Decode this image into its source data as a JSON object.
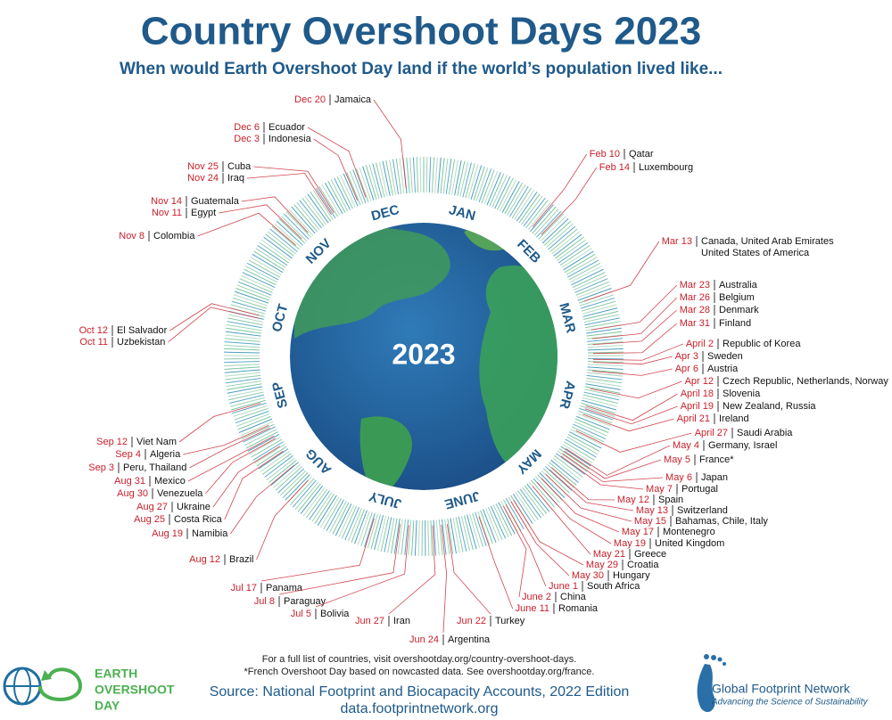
{
  "header": {
    "title": "Country Overshoot Days 2023",
    "subtitle": "When would Earth Overshoot Day land if the world’s population lived like..."
  },
  "center_label": "2023",
  "months": [
    "JAN",
    "FEB",
    "MAR",
    "APR",
    "MAY",
    "JUNE",
    "JULY",
    "AUG",
    "SEP",
    "OCT",
    "NOV",
    "DEC"
  ],
  "countries": [
    {
      "date": "Dec 20",
      "country": "Jamaica"
    },
    {
      "date": "Dec 6",
      "country": "Ecuador"
    },
    {
      "date": "Dec 3",
      "country": "Indonesia"
    },
    {
      "date": "Nov 25",
      "country": "Cuba"
    },
    {
      "date": "Nov 24",
      "country": "Iraq"
    },
    {
      "date": "Nov 14",
      "country": "Guatemala"
    },
    {
      "date": "Nov 11",
      "country": "Egypt"
    },
    {
      "date": "Nov 8",
      "country": "Colombia"
    },
    {
      "date": "Oct 12",
      "country": "El Salvador"
    },
    {
      "date": "Oct 11",
      "country": "Uzbekistan"
    },
    {
      "date": "Sep 12",
      "country": "Viet Nam"
    },
    {
      "date": "Sep 4",
      "country": "Algeria"
    },
    {
      "date": "Sep 3",
      "country": "Peru, Thailand"
    },
    {
      "date": "Aug 31",
      "country": "Mexico"
    },
    {
      "date": "Aug 30",
      "country": "Venezuela"
    },
    {
      "date": "Aug 27",
      "country": "Ukraine"
    },
    {
      "date": "Aug 25",
      "country": "Costa Rica"
    },
    {
      "date": "Aug 19",
      "country": "Namibia"
    },
    {
      "date": "Aug 12",
      "country": "Brazil"
    },
    {
      "date": "Jul 17",
      "country": "Panama"
    },
    {
      "date": "Jul 8",
      "country": "Paraguay"
    },
    {
      "date": "Jul 5",
      "country": "Bolivia"
    },
    {
      "date": "Jun 27",
      "country": "Iran"
    },
    {
      "date": "Jun 24",
      "country": "Argentina"
    },
    {
      "date": "Jun 22",
      "country": "Turkey"
    },
    {
      "date": "June 11",
      "country": "Romania"
    },
    {
      "date": "June 2",
      "country": "China"
    },
    {
      "date": "June 1",
      "country": "South Africa"
    },
    {
      "date": "May 30",
      "country": "Hungary"
    },
    {
      "date": "May 29",
      "country": "Croatia"
    },
    {
      "date": "May 21",
      "country": "Greece"
    },
    {
      "date": "May 19",
      "country": "United Kingdom"
    },
    {
      "date": "May 17",
      "country": "Montenegro"
    },
    {
      "date": "May 15",
      "country": "Bahamas, Chile, Italy"
    },
    {
      "date": "May 13",
      "country": "Switzerland"
    },
    {
      "date": "May 12",
      "country": "Spain"
    },
    {
      "date": "May 7",
      "country": "Portugal"
    },
    {
      "date": "May 6",
      "country": "Japan"
    },
    {
      "date": "May 5",
      "country": "France*"
    },
    {
      "date": "May 4",
      "country": "Germany, Israel"
    },
    {
      "date": "April 27",
      "country": "Saudi Arabia"
    },
    {
      "date": "April 21",
      "country": "Ireland"
    },
    {
      "date": "April 19",
      "country": "New Zealand, Russia"
    },
    {
      "date": "April 18",
      "country": "Slovenia"
    },
    {
      "date": "Apr 12",
      "country": "Czech Republic, Netherlands, Norway"
    },
    {
      "date": "Apr 6",
      "country": "Austria"
    },
    {
      "date": "Apr 3",
      "country": "Sweden"
    },
    {
      "date": "April 2",
      "country": "Republic of Korea"
    },
    {
      "date": "Mar 31",
      "country": "Finland"
    },
    {
      "date": "Mar 28",
      "country": "Denmark"
    },
    {
      "date": "Mar 26",
      "country": "Belgium"
    },
    {
      "date": "Mar 23",
      "country": "Australia"
    },
    {
      "date": "Mar 13",
      "country": "Canada, United Arab Emirates",
      "country_line2": "United States of America"
    },
    {
      "date": "Feb 14",
      "country": "Luxembourg"
    },
    {
      "date": "Feb 10",
      "country": "Qatar"
    }
  ],
  "footer": {
    "notes": [
      "For a full list of countries, visit overshootday.org/country-overshoot-days.",
      "*French Overshoot Day based on nowcasted data. See overshootday.org/france."
    ],
    "source": [
      "Source: National Footprint and Biocapacity Accounts, 2022 Edition",
      "data.footprintnetwork.org"
    ]
  },
  "logos": {
    "earth_overshoot_day": [
      "EARTH",
      "OVERSHOOT",
      "DAY"
    ],
    "gfn": {
      "name": "Global Footprint Network",
      "tagline": "Advancing the Science of Sustainability"
    }
  }
}
